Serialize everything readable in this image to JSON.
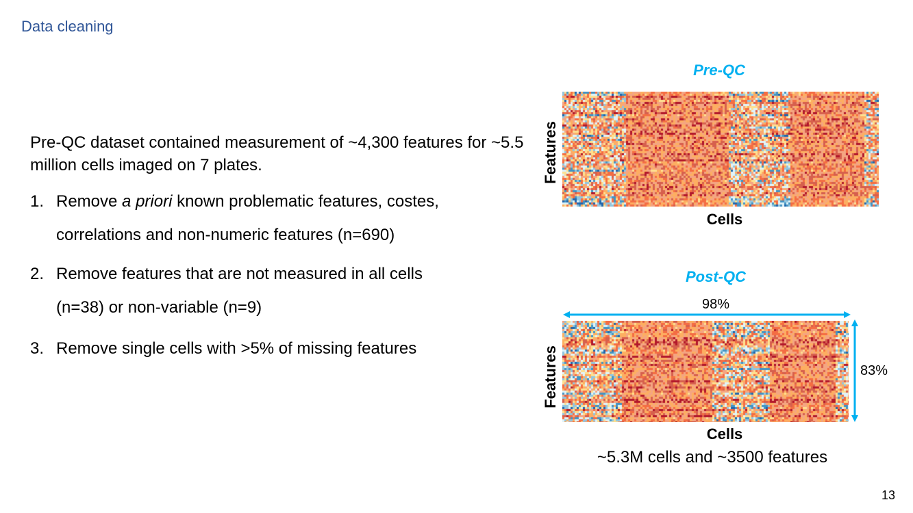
{
  "title": "Data cleaning",
  "intro": "Pre-QC dataset contained measurement of ~4,300 features for ~5.5 million cells imaged on 7 plates.",
  "steps": [
    {
      "num": "1.",
      "pre": "Remove ",
      "em": "a priori",
      "post": " known problematic features, costes,",
      "line2": "correlations and non-numeric features (n=690)"
    },
    {
      "num": "2.",
      "line1": "Remove features that are not measured in all cells",
      "line2": "(n=38) or non-variable (n=9)"
    },
    {
      "num": "3.",
      "line1": "Remove single cells with >5% of missing features"
    }
  ],
  "pre_qc": {
    "title": "Pre-QC",
    "xlabel": "Cells",
    "ylabel": "Features"
  },
  "post_qc": {
    "title": "Post-QC",
    "xlabel": "Cells",
    "ylabel": "Features",
    "width_pct": "98%",
    "height_pct": "83%"
  },
  "summary": "~5.3M cells and ~3500 features",
  "page_number": "13",
  "colors": {
    "title": "#2f5597",
    "accent": "#00b0f0",
    "heat_high": "#d7301f",
    "heat_mid": "#fdae61",
    "heat_low": "#4393c3"
  }
}
